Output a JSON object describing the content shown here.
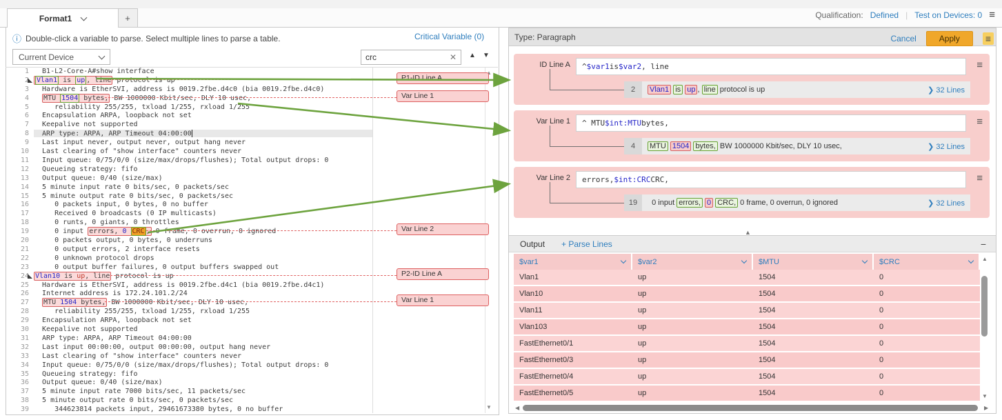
{
  "tabs": {
    "active_label": "Format1",
    "add_label": "+"
  },
  "topbar": {
    "qualification_label": "Qualification:",
    "qualification_value": "Defined",
    "test_on_devices": "Test on Devices: 0",
    "menu_icon": "menu-icon"
  },
  "colors": {
    "accent_blue": "#2d7dbd",
    "card_pink": "#f8cecc",
    "red_border": "#d75f5f",
    "green_border": "#67a233",
    "search_highlight": "#efa026",
    "apply_yellow": "#f0a72a",
    "arrow_green": "#6da33e"
  },
  "left_panel": {
    "info_text": "Double-click a variable to parse. Select multiple lines to parse a table.",
    "critical_variable": "Critical Variable (0)",
    "device_select_value": "Current Device",
    "search": {
      "value": "crc"
    },
    "markers": [
      {
        "label": "P1-ID Line A",
        "line": 2,
        "dash_from": 152
      },
      {
        "label": "Var Line 1",
        "line": 4,
        "dash_from": 152
      },
      {
        "label": "Var Line 2",
        "line": 19,
        "dash_from": 212
      },
      {
        "label": "P2-ID Line A",
        "line": 24,
        "dash_from": 160
      },
      {
        "label": "Var Line 1",
        "line": 27,
        "dash_from": 152
      }
    ],
    "code_lines": [
      {
        "n": 1,
        "s": [
          {
            "t": "  B1-L2-Core-A#show interface"
          }
        ]
      },
      {
        "n": 2,
        "exp": true,
        "s": [
          {
            "box": true,
            "segs": [
              {
                "t": "Vlan1",
                "c": "g v"
              },
              {
                "t": " is "
              },
              {
                "t": "up",
                "c": "g v"
              },
              {
                "t": ", line"
              }
            ]
          },
          {
            "t": " protocol is up"
          }
        ]
      },
      {
        "n": 3,
        "s": [
          {
            "t": "  Hardware is EtherSVI, address is 0019.2fbe.d4c0 (bia 0019.2fbe.d4c0)"
          }
        ]
      },
      {
        "n": 4,
        "s": [
          {
            "t": "  "
          },
          {
            "box": true,
            "segs": [
              {
                "t": "MTU "
              },
              {
                "t": "1504",
                "c": "g v"
              },
              {
                "t": " bytes,"
              }
            ]
          },
          {
            "t": " BW 1000000 Kbit/sec, DLY 10 usec,"
          }
        ]
      },
      {
        "n": 5,
        "s": [
          {
            "t": "     reliability 255/255, txload 1/255, rxload 1/255"
          }
        ]
      },
      {
        "n": 6,
        "s": [
          {
            "t": "  Encapsulation ARPA, loopback not set"
          }
        ]
      },
      {
        "n": 7,
        "s": [
          {
            "t": "  Keepalive not supported"
          }
        ]
      },
      {
        "n": 8,
        "cur": true,
        "s": [
          {
            "t": "  ARP type: ARPA, ARP Timeout 04:00:00"
          }
        ]
      },
      {
        "n": 9,
        "s": [
          {
            "t": "  Last input never, output never, output hang never"
          }
        ]
      },
      {
        "n": 10,
        "s": [
          {
            "t": "  Last clearing of \"show interface\" counters never"
          }
        ]
      },
      {
        "n": 11,
        "s": [
          {
            "t": "  Input queue: 0/75/0/0 (size/max/drops/flushes); Total output drops: 0"
          }
        ]
      },
      {
        "n": 12,
        "s": [
          {
            "t": "  Queueing strategy: fifo"
          }
        ]
      },
      {
        "n": 13,
        "s": [
          {
            "t": "  Output queue: 0/40 (size/max)"
          }
        ]
      },
      {
        "n": 14,
        "s": [
          {
            "t": "  5 minute input rate 0 bits/sec, 0 packets/sec"
          }
        ]
      },
      {
        "n": 15,
        "s": [
          {
            "t": "  5 minute output rate 0 bits/sec, 0 packets/sec"
          }
        ]
      },
      {
        "n": 16,
        "s": [
          {
            "t": "     0 packets input, 0 bytes, 0 no buffer"
          }
        ]
      },
      {
        "n": 17,
        "s": [
          {
            "t": "     Received 0 broadcasts (0 IP multicasts)"
          }
        ]
      },
      {
        "n": 18,
        "s": [
          {
            "t": "     0 runts, 0 giants, 0 throttles"
          }
        ]
      },
      {
        "n": 19,
        "s": [
          {
            "t": "     0 input "
          },
          {
            "box": true,
            "segs": [
              {
                "t": "errors, "
              },
              {
                "t": "0",
                "c": "v"
              },
              {
                "t": " "
              },
              {
                "t": "CRC",
                "c": "hl g"
              },
              {
                "t": ","
              }
            ]
          },
          {
            "t": " 0 frame, 0 overrun, 0 ignored"
          }
        ]
      },
      {
        "n": 20,
        "s": [
          {
            "t": "     0 packets output, 0 bytes, 0 underruns"
          }
        ]
      },
      {
        "n": 21,
        "s": [
          {
            "t": "     0 output errors, 2 interface resets"
          }
        ]
      },
      {
        "n": 22,
        "s": [
          {
            "t": "     0 unknown protocol drops"
          }
        ]
      },
      {
        "n": 23,
        "s": [
          {
            "t": "     0 output buffer failures, 0 output buffers swapped out"
          }
        ]
      },
      {
        "n": 24,
        "exp": true,
        "s": [
          {
            "box": true,
            "segs": [
              {
                "t": "Vlan10",
                "c": "v"
              },
              {
                "t": " is "
              },
              {
                "t": "up",
                "c": "r"
              },
              {
                "t": ", line"
              }
            ]
          },
          {
            "t": " protocol is up"
          }
        ]
      },
      {
        "n": 25,
        "s": [
          {
            "t": "  Hardware is EtherSVI, address is 0019.2fbe.d4c1 (bia 0019.2fbe.d4c1)"
          }
        ]
      },
      {
        "n": 26,
        "s": [
          {
            "t": "  Internet address is 172.24.101.2/24"
          }
        ]
      },
      {
        "n": 27,
        "s": [
          {
            "t": "  "
          },
          {
            "box": true,
            "segs": [
              {
                "t": "MTU "
              },
              {
                "t": "1504",
                "c": "v"
              },
              {
                "t": " bytes,"
              }
            ]
          },
          {
            "t": " BW 1000000 Kbit/sec, DLY 10 usec,"
          }
        ]
      },
      {
        "n": 28,
        "s": [
          {
            "t": "     reliability 255/255, txload 1/255, rxload 1/255"
          }
        ]
      },
      {
        "n": 29,
        "s": [
          {
            "t": "  Encapsulation ARPA, loopback not set"
          }
        ]
      },
      {
        "n": 30,
        "s": [
          {
            "t": "  Keepalive not supported"
          }
        ]
      },
      {
        "n": 31,
        "s": [
          {
            "t": "  ARP type: ARPA, ARP Timeout 04:00:00"
          }
        ]
      },
      {
        "n": 32,
        "s": [
          {
            "t": "  Last input 00:00:00, output 00:00:00, output hang never"
          }
        ]
      },
      {
        "n": 33,
        "s": [
          {
            "t": "  Last clearing of \"show interface\" counters never"
          }
        ]
      },
      {
        "n": 34,
        "s": [
          {
            "t": "  Input queue: 0/75/0/0 (size/max/drops/flushes); Total output drops: 0"
          }
        ]
      },
      {
        "n": 35,
        "s": [
          {
            "t": "  Queueing strategy: fifo"
          }
        ]
      },
      {
        "n": 36,
        "s": [
          {
            "t": "  Output queue: 0/40 (size/max)"
          }
        ]
      },
      {
        "n": 37,
        "s": [
          {
            "t": "  5 minute input rate 7000 bits/sec, 11 packets/sec"
          }
        ]
      },
      {
        "n": 38,
        "s": [
          {
            "t": "  5 minute output rate 0 bits/sec, 0 packets/sec"
          }
        ]
      },
      {
        "n": 39,
        "s": [
          {
            "t": "     344623814 packets input, 29461673380 bytes, 0 no buffer"
          }
        ]
      }
    ]
  },
  "right_panel": {
    "type_label": "Type: Paragraph",
    "cancel_label": "Cancel",
    "apply_label": "Apply",
    "cards": [
      {
        "label": "ID Line A",
        "pattern": [
          {
            "t": "^"
          },
          {
            "t": "$var1",
            "c": "v"
          },
          {
            "t": " is "
          },
          {
            "t": "$var2",
            "c": "v"
          },
          {
            "t": ", line"
          }
        ],
        "sample_line": "2",
        "sample": [
          {
            "t": "Vlan1",
            "c": "tr v"
          },
          {
            "t": " "
          },
          {
            "t": "is",
            "c": "tg"
          },
          {
            "t": " "
          },
          {
            "t": "up",
            "c": "tr v"
          },
          {
            "t": ", "
          },
          {
            "t": "line",
            "c": "tg"
          },
          {
            "t": " protocol is up"
          }
        ],
        "lines_link": "32 Lines"
      },
      {
        "label": "Var Line 1",
        "pattern": [
          {
            "t": "^  MTU "
          },
          {
            "t": "$int:MTU",
            "c": "v"
          },
          {
            "t": " bytes,"
          }
        ],
        "sample_line": "4",
        "sample": [
          {
            "t": "MTU",
            "c": "tg"
          },
          {
            "t": " "
          },
          {
            "t": "1504",
            "c": "tr v"
          },
          {
            "t": " "
          },
          {
            "t": "bytes,",
            "c": "tg"
          },
          {
            "t": " BW 1000000 Kbit/sec, DLY 10 usec,"
          }
        ],
        "lines_link": "32 Lines"
      },
      {
        "label": "Var Line 2",
        "pattern": [
          {
            "t": "errors, "
          },
          {
            "t": "$int:CRC",
            "c": "v"
          },
          {
            "t": " CRC,"
          }
        ],
        "sample_line": "19",
        "sample": [
          {
            "t": "  0 input "
          },
          {
            "t": "errors,",
            "c": "tg"
          },
          {
            "t": " "
          },
          {
            "t": "0",
            "c": "tr v"
          },
          {
            "t": " "
          },
          {
            "t": "CRC,",
            "c": "tg"
          },
          {
            "t": " 0 frame, 0 overrun, 0 ignored"
          }
        ],
        "lines_link": "32 Lines"
      }
    ],
    "output": {
      "title": "Output",
      "parse_lines_label": "+ Parse Lines",
      "minimize_label": "−",
      "columns": [
        "$var1",
        "$var2",
        "$MTU",
        "$CRC"
      ],
      "rows": [
        [
          "Vlan1",
          "up",
          "1504",
          "0"
        ],
        [
          "Vlan10",
          "up",
          "1504",
          "0"
        ],
        [
          "Vlan11",
          "up",
          "1504",
          "0"
        ],
        [
          "Vlan103",
          "up",
          "1504",
          "0"
        ],
        [
          "FastEthernet0/1",
          "up",
          "1504",
          "0"
        ],
        [
          "FastEthernet0/3",
          "up",
          "1504",
          "0"
        ],
        [
          "FastEthernet0/4",
          "up",
          "1504",
          "0"
        ],
        [
          "FastEthernet0/5",
          "up",
          "1504",
          "0"
        ]
      ]
    }
  }
}
